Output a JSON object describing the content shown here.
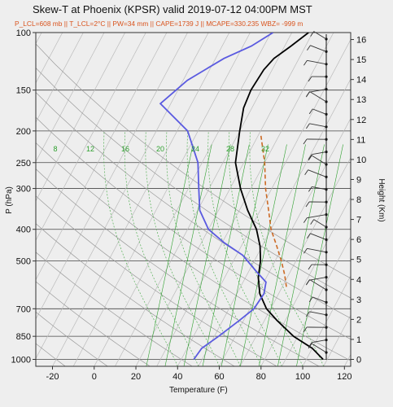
{
  "header": {
    "title": "Skew-T at Phoenix (KPSR) valid 2019-07-12 04:00PM MST",
    "subtitle": "P_LCL=608 mb || T_LCL=2°C || PW=34 mm || CAPE=1739 J || MCAPE=330.235 WBZ= -999 m"
  },
  "chart_data": {
    "type": "line",
    "title": "Skew-T at Phoenix (KPSR) valid 2019-07-12 04:00PM MST",
    "xlabel": "Temperature (F)",
    "ylabel": "P (hPa)",
    "y2label": "Height (Km)",
    "xlim": [
      -28,
      123
    ],
    "ylim_hpa": [
      1050,
      100
    ],
    "x_ticks": [
      -20,
      0,
      20,
      40,
      60,
      80,
      100,
      120
    ],
    "y_ticks_hpa": [
      100,
      150,
      200,
      250,
      300,
      400,
      500,
      700,
      850,
      1000
    ],
    "height_ticks_km": [
      0,
      1,
      2,
      3,
      4,
      5,
      6,
      7,
      8,
      9,
      10,
      11,
      12,
      13,
      14,
      15,
      16
    ],
    "mixing_ratio_labels": [
      "8",
      "12",
      "16",
      "20",
      "24",
      "28",
      "32"
    ],
    "series": [
      {
        "name": "temperature",
        "color": "#000000",
        "points": [
          [
            108,
            1000
          ],
          [
            100,
            925
          ],
          [
            88,
            850
          ],
          [
            76,
            760
          ],
          [
            68,
            700
          ],
          [
            61,
            630
          ],
          [
            56,
            560
          ],
          [
            53,
            500
          ],
          [
            49,
            450
          ],
          [
            43,
            400
          ],
          [
            34,
            350
          ],
          [
            25,
            300
          ],
          [
            16,
            250
          ],
          [
            10,
            200
          ],
          [
            6,
            170
          ],
          [
            5,
            150
          ],
          [
            6,
            130
          ],
          [
            8,
            120
          ],
          [
            13,
            110
          ],
          [
            18,
            100
          ]
        ]
      },
      {
        "name": "dewpoint",
        "color": "#5a5ae0",
        "points": [
          [
            46,
            1000
          ],
          [
            47,
            925
          ],
          [
            52,
            850
          ],
          [
            58,
            760
          ],
          [
            62,
            700
          ],
          [
            63,
            630
          ],
          [
            61,
            580
          ],
          [
            54,
            540
          ],
          [
            43,
            480
          ],
          [
            31,
            440
          ],
          [
            20,
            400
          ],
          [
            11,
            350
          ],
          [
            5,
            300
          ],
          [
            -2,
            250
          ],
          [
            -15,
            200
          ],
          [
            -35,
            165
          ],
          [
            -28,
            140
          ],
          [
            -16,
            120
          ],
          [
            -6,
            110
          ],
          [
            1,
            100
          ]
        ]
      },
      {
        "name": "parcel",
        "color": "#cc6a25",
        "dashed": true,
        "points": [
          [
            72,
            600
          ],
          [
            68,
            550
          ],
          [
            63,
            500
          ],
          [
            57,
            450
          ],
          [
            50,
            400
          ],
          [
            44,
            350
          ],
          [
            37,
            300
          ],
          [
            30,
            250
          ],
          [
            21,
            205
          ]
        ]
      }
    ]
  }
}
